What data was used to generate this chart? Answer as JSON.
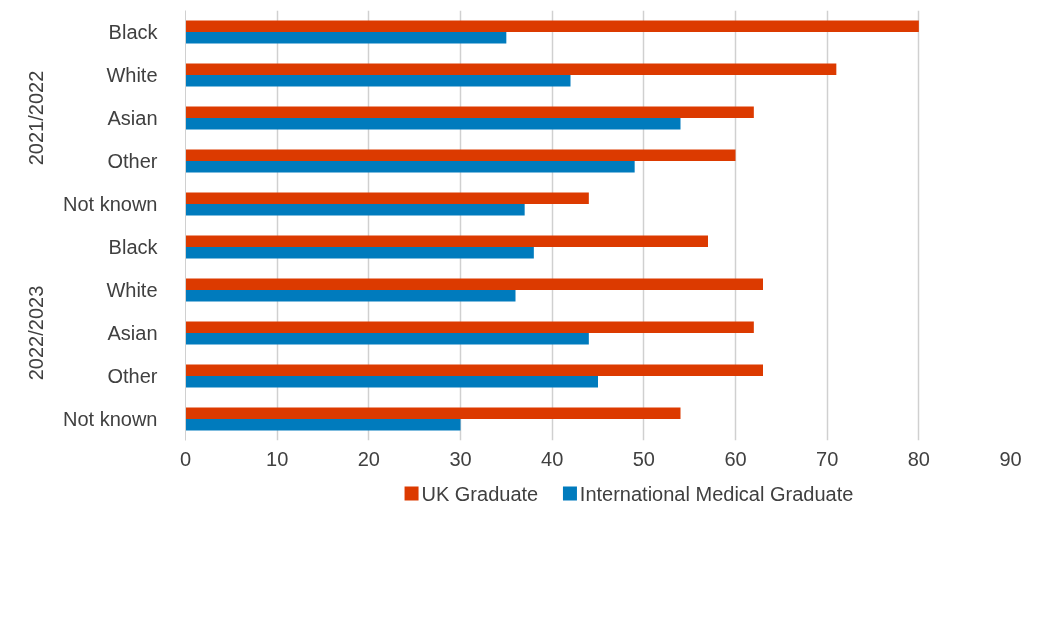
{
  "chart_data": {
    "type": "bar",
    "orientation": "horizontal",
    "categories": [
      "Black",
      "White",
      "Asian",
      "Other",
      "Not known",
      "Black",
      "White",
      "Asian",
      "Other",
      "Not known"
    ],
    "series": [
      {
        "name": "UK Graduate",
        "color": "#dc3a00",
        "values": [
          80,
          71,
          62,
          60,
          44,
          57,
          63,
          62,
          63,
          54
        ]
      },
      {
        "name": "International Medical Graduate",
        "color": "#007bbd",
        "values": [
          35,
          42,
          54,
          49,
          37,
          38,
          36,
          44,
          45,
          30
        ]
      }
    ],
    "xlim": [
      0,
      90
    ],
    "xticks": [
      0,
      10,
      20,
      30,
      40,
      50,
      60,
      70,
      80,
      90
    ],
    "grid": "x",
    "legend": "bottom",
    "annotations": [
      "2021/2022",
      "2022/2023"
    ]
  }
}
